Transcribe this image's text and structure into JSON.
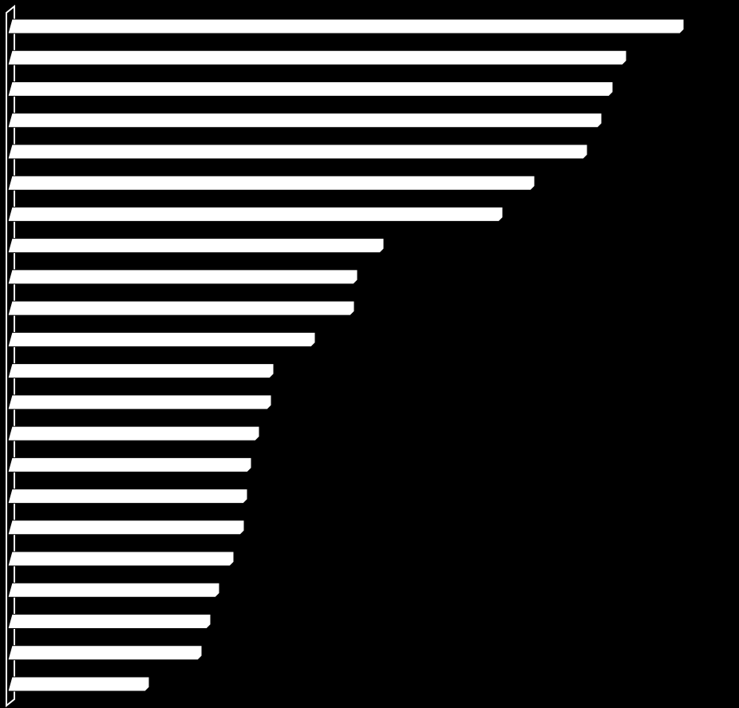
{
  "chart_data": {
    "type": "bar",
    "orientation": "horizontal",
    "values": [
      842,
      770,
      753,
      739,
      721,
      655,
      615,
      466,
      433,
      429,
      380,
      328,
      325,
      310,
      300,
      295,
      291,
      278,
      260,
      249,
      238,
      172
    ],
    "color": "#ffffff",
    "xlim": [
      0,
      850
    ]
  }
}
